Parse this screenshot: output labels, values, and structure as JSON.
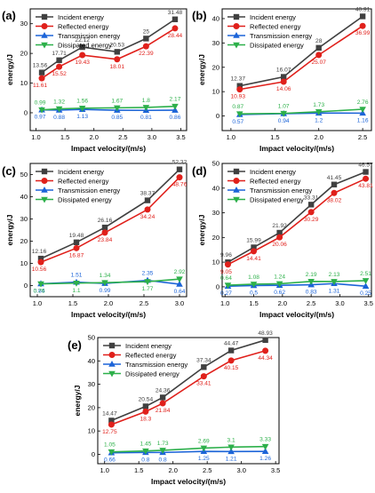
{
  "figure": {
    "colors": {
      "incident": "#404040",
      "reflected": "#e0201b",
      "transmission": "#1c64d8",
      "dissipated": "#2db04a"
    }
  },
  "chart_data": [
    {
      "panel": "(a)",
      "type": "line",
      "xlabel": "Impact velocity/(m/s)",
      "ylabel": "energy/J",
      "xlim": [
        0.9,
        3.6
      ],
      "ylim": [
        -6,
        35
      ],
      "xticks": [
        "1.0",
        "1.5",
        "2.0",
        "2.5",
        "3.0",
        "3.5"
      ],
      "xtick_values": [
        1.0,
        1.5,
        2.0,
        2.5,
        3.0,
        3.5
      ],
      "yticks": [
        "0",
        "10",
        "20",
        "30"
      ],
      "ytick_values": [
        0,
        10,
        20,
        30
      ],
      "x": [
        1.1,
        1.4,
        1.8,
        2.4,
        2.9,
        3.4
      ],
      "legend_position": "top-left",
      "series": [
        {
          "name": "Incident energy",
          "key": "incident",
          "marker": "square",
          "values": [
            13.56,
            17.71,
            22.12,
            20.53,
            25,
            31.48
          ],
          "labels": [
            "13.56",
            "17.71",
            "22.12",
            "20.53",
            "25",
            "31.48"
          ],
          "label_pos": "above"
        },
        {
          "name": "Reflected energy",
          "key": "reflected",
          "marker": "circle",
          "values": [
            11.61,
            15.52,
            19.43,
            18.01,
            22.39,
            28.44
          ],
          "labels": [
            "11.61",
            "15.52",
            "19.43",
            "18.01",
            "22.39",
            "28.44"
          ],
          "label_pos": "below"
        },
        {
          "name": "Transmission energy",
          "key": "transmission",
          "marker": "triangle-up",
          "values": [
            0.97,
            0.88,
            1.13,
            0.85,
            0.81,
            0.86
          ],
          "labels": [
            "0.97",
            "0.88",
            "1.13",
            "0.85",
            "0.81",
            "0.86"
          ],
          "label_pos": "below"
        },
        {
          "name": "Dissipated energy",
          "key": "dissipated",
          "marker": "triangle-down",
          "values": [
            0.99,
            1.32,
            1.56,
            1.67,
            1.8,
            2.17
          ],
          "labels": [
            "0.99",
            "1.32",
            "1.56",
            "1.67",
            "1.8",
            "2.17"
          ],
          "label_pos": "above"
        }
      ]
    },
    {
      "panel": "(b)",
      "type": "line",
      "xlabel": "Impact velocity/(m/s)",
      "ylabel": "energy/J",
      "xlim": [
        0.9,
        2.6
      ],
      "ylim": [
        -6,
        44
      ],
      "xticks": [
        "1.0",
        "1.5",
        "2.0",
        "2.5"
      ],
      "xtick_values": [
        1.0,
        1.5,
        2.0,
        2.5
      ],
      "yticks": [
        "0",
        "10",
        "20",
        "30",
        "40"
      ],
      "ytick_values": [
        0,
        10,
        20,
        30,
        40
      ],
      "x": [
        1.1,
        1.6,
        2.0,
        2.5
      ],
      "legend_position": "top-left",
      "series": [
        {
          "name": "Incident energy",
          "key": "incident",
          "marker": "square",
          "values": [
            12.37,
            16.07,
            28,
            40.91
          ],
          "labels": [
            "12.37",
            "16.07",
            "28",
            "40.91"
          ],
          "label_pos": "above"
        },
        {
          "name": "Reflected energy",
          "key": "reflected",
          "marker": "circle",
          "values": [
            10.93,
            14.06,
            25.07,
            36.99
          ],
          "labels": [
            "10.93",
            "14.06",
            "25.07",
            "36.99"
          ],
          "label_pos": "below"
        },
        {
          "name": "Transmission energy",
          "key": "transmission",
          "marker": "triangle-up",
          "values": [
            0.57,
            0.94,
            1.2,
            1.16
          ],
          "labels": [
            "0.57",
            "0.94",
            "1.2",
            "1.16"
          ],
          "label_pos": "below"
        },
        {
          "name": "Dissipated energy",
          "key": "dissipated",
          "marker": "triangle-down",
          "values": [
            0.87,
            1.07,
            1.73,
            2.76
          ],
          "labels": [
            "0.87",
            "1.07",
            "1.73",
            "2.76"
          ],
          "label_pos": "above"
        }
      ]
    },
    {
      "panel": "(c)",
      "type": "line",
      "xlabel": "Impact velocity/(m/s)",
      "ylabel": "energy/J",
      "xlim": [
        0.9,
        3.1
      ],
      "ylim": [
        -5,
        55
      ],
      "xticks": [
        "1.0",
        "1.5",
        "2.0",
        "2.5",
        "3.0"
      ],
      "xtick_values": [
        1.0,
        1.5,
        2.0,
        2.5,
        3.0
      ],
      "yticks": [
        "0",
        "10",
        "20",
        "30",
        "40",
        "50"
      ],
      "ytick_values": [
        0,
        10,
        20,
        30,
        40,
        50
      ],
      "x": [
        1.05,
        1.55,
        1.95,
        2.55,
        3.0
      ],
      "legend_position": "top-left",
      "series": [
        {
          "name": "Incident energy",
          "key": "incident",
          "marker": "square",
          "values": [
            12.16,
            19.48,
            26.16,
            38.37,
            52.32
          ],
          "labels": [
            "12.16",
            "19.48",
            "26.16",
            "38.37",
            "52.32"
          ],
          "label_pos": "above"
        },
        {
          "name": "Reflected energy",
          "key": "reflected",
          "marker": "circle",
          "values": [
            10.56,
            16.87,
            23.84,
            34.24,
            48.76
          ],
          "labels": [
            "10.56",
            "16.87",
            "23.84",
            "34.24",
            "48.76"
          ],
          "label_pos": "below"
        },
        {
          "name": "Transmission energy",
          "key": "transmission",
          "marker": "triangle-up",
          "values": [
            0.84,
            1.51,
            0.99,
            2.35,
            0.64
          ],
          "labels": [
            "0.84",
            "1.51",
            "0.99",
            "2.35",
            "0.64"
          ],
          "label_pos": "mixed"
        },
        {
          "name": "Dissipated energy",
          "key": "dissipated",
          "marker": "triangle-down",
          "values": [
            0.76,
            1.1,
            1.34,
            1.77,
            2.92
          ],
          "labels": [
            "0.76",
            "1.1",
            "1.34",
            "1.77",
            "2.92"
          ],
          "label_pos": "mixed"
        }
      ]
    },
    {
      "panel": "(d)",
      "type": "line",
      "xlabel": "Impact velocity/(m/s)",
      "ylabel": "energy/J",
      "xlim": [
        0.95,
        3.55
      ],
      "ylim": [
        -4,
        50
      ],
      "xticks": [
        "1.0",
        "1.5",
        "2.0",
        "2.5",
        "3.0",
        "3.5"
      ],
      "xtick_values": [
        1.0,
        1.5,
        2.0,
        2.5,
        3.0,
        3.5
      ],
      "yticks": [
        "0",
        "10",
        "20",
        "30",
        "40",
        "50"
      ],
      "ytick_values": [
        0,
        10,
        20,
        30,
        40,
        50
      ],
      "x": [
        1.05,
        1.5,
        1.95,
        2.5,
        2.9,
        3.45
      ],
      "legend_position": "top-left",
      "series": [
        {
          "name": "Incident energy",
          "key": "incident",
          "marker": "square",
          "values": [
            9.96,
            15.99,
            21.92,
            33.31,
            41.45,
            46.57
          ],
          "labels": [
            "9.96",
            "15.99",
            "21.92",
            "33.31",
            "41.45",
            "46.57"
          ],
          "label_pos": "above"
        },
        {
          "name": "Reflected energy",
          "key": "reflected",
          "marker": "circle",
          "values": [
            9.05,
            14.41,
            20.06,
            30.29,
            38.02,
            43.81
          ],
          "labels": [
            "9.05",
            "14.41",
            "20.06",
            "30.29",
            "38.02",
            "43.81"
          ],
          "label_pos": "below"
        },
        {
          "name": "Transmission energy",
          "key": "transmission",
          "marker": "triangle-up",
          "values": [
            0.27,
            0.5,
            0.62,
            0.83,
            1.31,
            0.25
          ],
          "labels": [
            "0.27",
            "0.5",
            "0.62",
            "0.83",
            "1.31",
            "0.25"
          ],
          "label_pos": "below"
        },
        {
          "name": "Dissipated energy",
          "key": "dissipated",
          "marker": "triangle-down",
          "values": [
            0.64,
            1.08,
            1.24,
            2.19,
            2.13,
            2.51
          ],
          "labels": [
            "0.64",
            "1.08",
            "1.24",
            "2.19",
            "2.13",
            "2.51"
          ],
          "label_pos": "above"
        }
      ]
    },
    {
      "panel": "(e)",
      "type": "line",
      "xlabel": "Impact velocity/(m/s)",
      "ylabel": "energy/J",
      "xlim": [
        0.9,
        3.55
      ],
      "ylim": [
        -4,
        50
      ],
      "xticks": [
        "1.0",
        "1.5",
        "2.0",
        "2.5",
        "3.0",
        "3.5"
      ],
      "xtick_values": [
        1.0,
        1.5,
        2.0,
        2.5,
        3.0,
        3.5
      ],
      "yticks": [
        "0",
        "10",
        "20",
        "30",
        "40",
        "50"
      ],
      "ytick_values": [
        0,
        10,
        20,
        30,
        40,
        50
      ],
      "x": [
        1.1,
        1.6,
        1.85,
        2.45,
        2.85,
        3.35
      ],
      "legend_position": "top-left",
      "series": [
        {
          "name": "Incident energy",
          "key": "incident",
          "marker": "square",
          "values": [
            14.47,
            20.54,
            24.36,
            37.34,
            44.47,
            48.93
          ],
          "labels": [
            "14.47",
            "20.54",
            "24.36",
            "37.34",
            "44.47",
            "48.93"
          ],
          "label_pos": "above"
        },
        {
          "name": "Reflected energy",
          "key": "reflected",
          "marker": "circle",
          "values": [
            12.75,
            18.3,
            21.84,
            33.41,
            40.15,
            44.34
          ],
          "labels": [
            "12.75",
            "18.3",
            "21.84",
            "33.41",
            "40.15",
            "44.34"
          ],
          "label_pos": "below"
        },
        {
          "name": "Transmission energy",
          "key": "transmission",
          "marker": "triangle-up",
          "values": [
            0.66,
            0.8,
            0.8,
            1.25,
            1.21,
            1.26
          ],
          "labels": [
            "0.66",
            "0.8",
            "0.8",
            "1.25",
            "1.21",
            "1.26"
          ],
          "label_pos": "below"
        },
        {
          "name": "Dissipated energy",
          "key": "dissipated",
          "marker": "triangle-down",
          "values": [
            1.05,
            1.45,
            1.73,
            2.69,
            3.1,
            3.33
          ],
          "labels": [
            "1.05",
            "1.45",
            "1.73",
            "2.69",
            "3.1",
            "3.33"
          ],
          "label_pos": "above"
        }
      ]
    }
  ]
}
